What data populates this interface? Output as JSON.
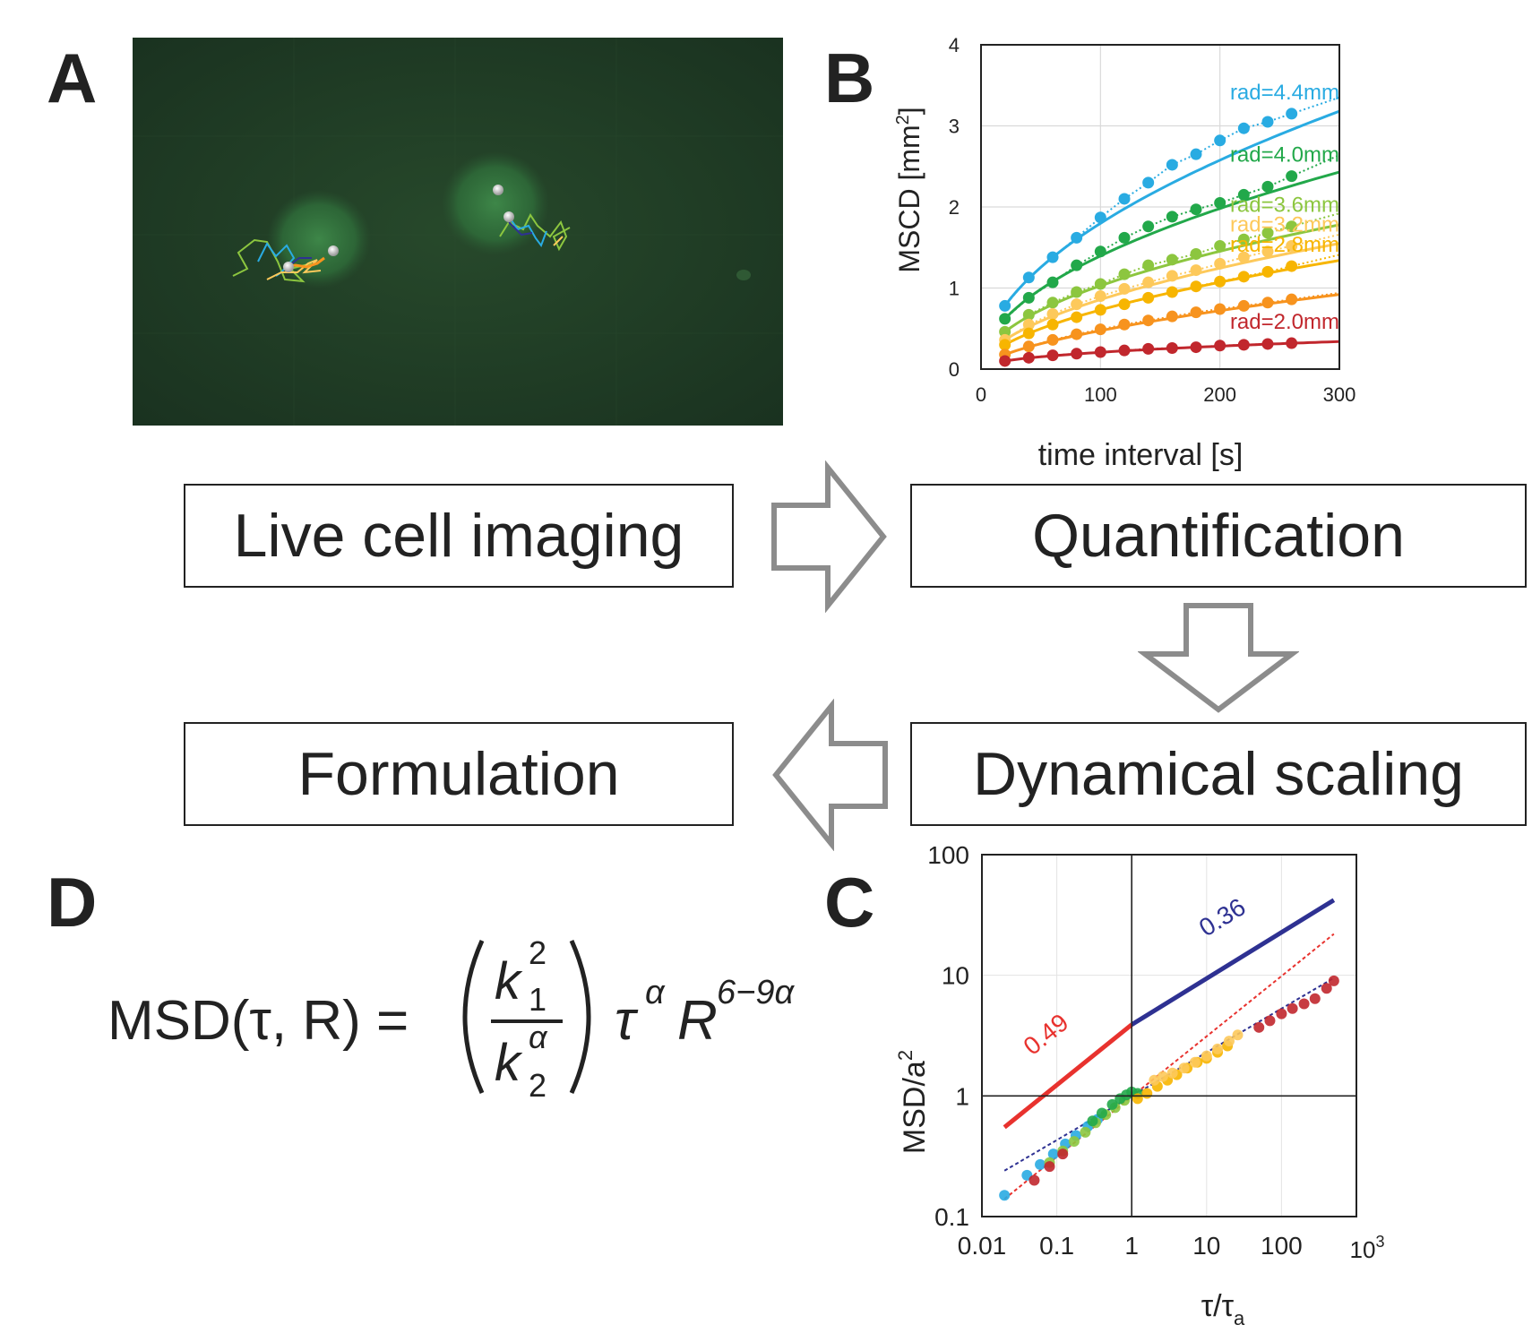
{
  "panels": {
    "a": "A",
    "b": "B",
    "c": "C",
    "d": "D"
  },
  "workflow": {
    "step1": "Live cell imaging",
    "step2": "Quantification",
    "step3": "Dynamical scaling",
    "step4": "Formulation"
  },
  "panel_a_image": "fluorescence-microscopy-nuclei-with-trajectories",
  "colors": {
    "background_green": "#1f3a22",
    "arrow_gray": "#8c8c8c",
    "rad44": "#29abe2",
    "rad40": "#22a84a",
    "rad36": "#8cc63f",
    "rad32": "#fdc95b",
    "rad28": "#f7b500",
    "rad24": "#f7931e",
    "rad20": "#c1272d",
    "fit049": "#e8322e",
    "fit036": "#2e3192"
  },
  "chart_data": [
    {
      "type": "scatter",
      "id": "panel-b",
      "xlabel": "time interval [s]",
      "ylabel_main": "MSCD [mm",
      "ylabel_sup": "2",
      "ylabel_end": "]",
      "xlim": [
        0,
        300
      ],
      "ylim": [
        0,
        4
      ],
      "xticks": [
        0,
        100,
        200,
        300
      ],
      "yticks": [
        0,
        1,
        2,
        3,
        4
      ],
      "grid": true,
      "x": [
        20,
        40,
        60,
        80,
        100,
        120,
        140,
        160,
        180,
        200,
        220,
        240,
        260
      ],
      "series": [
        {
          "name": "rad=4.4mm",
          "label": "rad=4.4mm",
          "color": "#29abe2",
          "labelled": true,
          "values": [
            0.78,
            1.13,
            1.38,
            1.62,
            1.87,
            2.1,
            2.3,
            2.52,
            2.65,
            2.82,
            2.97,
            3.05,
            3.15
          ],
          "fit_end": 3.18
        },
        {
          "name": "rad=4.0mm",
          "label": "rad=4.0mm",
          "color": "#22a84a",
          "labelled": true,
          "values": [
            0.62,
            0.88,
            1.07,
            1.28,
            1.45,
            1.62,
            1.76,
            1.88,
            1.97,
            2.05,
            2.15,
            2.25,
            2.38
          ],
          "fit_end": 2.43
        },
        {
          "name": "rad=3.6mm",
          "label": "rad=3.6mm",
          "color": "#8cc63f",
          "labelled": true,
          "values": [
            0.46,
            0.67,
            0.82,
            0.95,
            1.05,
            1.17,
            1.28,
            1.35,
            1.42,
            1.52,
            1.6,
            1.68,
            1.76
          ],
          "fit_end": 1.78
        },
        {
          "name": "rad=3.2mm",
          "label": "rad=3.2mm",
          "color": "#fdc95b",
          "labelled": true,
          "values": [
            0.36,
            0.55,
            0.68,
            0.8,
            0.9,
            0.99,
            1.07,
            1.15,
            1.22,
            1.3,
            1.38,
            1.45,
            1.52
          ],
          "fit_end": 1.55
        },
        {
          "name": "rad=2.8mm",
          "label": "rad=2.8mm",
          "color": "#f7b500",
          "labelled": true,
          "values": [
            0.3,
            0.44,
            0.55,
            0.64,
            0.73,
            0.8,
            0.88,
            0.95,
            1.02,
            1.08,
            1.14,
            1.2,
            1.27
          ],
          "fit_end": 1.34
        },
        {
          "name": "rad=2.4mm",
          "label": "",
          "color": "#f7931e",
          "labelled": false,
          "values": [
            0.18,
            0.28,
            0.36,
            0.43,
            0.49,
            0.55,
            0.6,
            0.65,
            0.7,
            0.74,
            0.78,
            0.82,
            0.86
          ],
          "fit_end": 0.92
        },
        {
          "name": "rad=2.0mm",
          "label": "rad=2.0mm",
          "color": "#c1272d",
          "labelled": true,
          "values": [
            0.1,
            0.14,
            0.17,
            0.19,
            0.21,
            0.23,
            0.25,
            0.26,
            0.27,
            0.29,
            0.3,
            0.31,
            0.32
          ],
          "fit_end": 0.34
        }
      ]
    },
    {
      "type": "scatter",
      "id": "panel-c",
      "scale": "log-log",
      "xlabel_main": "τ/τ",
      "xlabel_sub": "a",
      "ylabel_main": "MSD/a",
      "ylabel_sup": "2",
      "xlim": [
        0.01,
        1000
      ],
      "ylim": [
        0.1,
        100
      ],
      "xtick_labels": [
        "0.01",
        "0.1",
        "1",
        "10",
        "100"
      ],
      "xtick_values": [
        0.01,
        0.1,
        1,
        10,
        100
      ],
      "xtick_last_base": "10",
      "xtick_last_exp": "3",
      "ytick_labels": [
        "0.1",
        "1",
        "10",
        "100"
      ],
      "ytick_values": [
        0.1,
        1,
        10,
        100
      ],
      "reference_lines": [
        {
          "label": "0.49",
          "slope": 0.49,
          "color": "#e8322e",
          "x": [
            0.02,
            1
          ],
          "y": [
            0.55,
            3.9
          ]
        },
        {
          "label": "0.36",
          "slope": 0.36,
          "color": "#2e3192",
          "x": [
            1,
            500
          ],
          "y": [
            3.9,
            42
          ]
        }
      ],
      "fit_lines": [
        {
          "slope": 0.49,
          "color": "#e8322e",
          "x": [
            0.02,
            500
          ],
          "y": [
            0.14,
            22
          ]
        },
        {
          "slope": 0.36,
          "color": "#2e3192",
          "x": [
            0.02,
            500
          ],
          "y": [
            0.24,
            9.5
          ]
        }
      ],
      "points": [
        {
          "color": "#29abe2",
          "x": [
            0.02,
            0.04,
            0.06,
            0.09,
            0.13,
            0.18,
            0.26,
            0.35
          ],
          "y": [
            0.15,
            0.22,
            0.27,
            0.33,
            0.4,
            0.47,
            0.56,
            0.64
          ]
        },
        {
          "color": "#8cc63f",
          "x": [
            0.08,
            0.12,
            0.17,
            0.24,
            0.33,
            0.45,
            0.6,
            0.8
          ],
          "y": [
            0.28,
            0.35,
            0.42,
            0.5,
            0.6,
            0.7,
            0.8,
            0.92
          ]
        },
        {
          "color": "#22a84a",
          "x": [
            0.3,
            0.4,
            0.55,
            0.7,
            0.85,
            1.0,
            1.2
          ],
          "y": [
            0.62,
            0.72,
            0.85,
            0.95,
            1.02,
            1.08,
            1.05
          ]
        },
        {
          "color": "#f7b500",
          "x": [
            1.2,
            1.6,
            2.2,
            3.0,
            4.0,
            5.5,
            7.5,
            10,
            14,
            19
          ],
          "y": [
            0.95,
            1.05,
            1.2,
            1.35,
            1.5,
            1.7,
            1.9,
            2.05,
            2.3,
            2.6
          ]
        },
        {
          "color": "#fdc95b",
          "x": [
            2.0,
            2.6,
            3.5,
            5,
            7,
            10,
            14,
            20,
            26
          ],
          "y": [
            1.35,
            1.45,
            1.55,
            1.7,
            1.9,
            2.15,
            2.45,
            2.85,
            3.2
          ]
        },
        {
          "color": "#c1272d",
          "x": [
            0.05,
            0.08,
            0.12,
            50,
            70,
            100,
            140,
            200,
            280,
            400,
            500
          ],
          "y": [
            0.2,
            0.26,
            0.33,
            3.7,
            4.2,
            4.8,
            5.3,
            5.8,
            6.4,
            7.8,
            9.0
          ]
        }
      ]
    }
  ],
  "equation": {
    "lhs": "MSD(τ, R) =",
    "num_base": "k",
    "num_sub": "1",
    "num_sup": "2",
    "den_base": "k",
    "den_sub": "2",
    "den_sup": "α",
    "tau": "τ",
    "tau_exp": "α",
    "r": "R",
    "r_exp": "6−9α"
  }
}
